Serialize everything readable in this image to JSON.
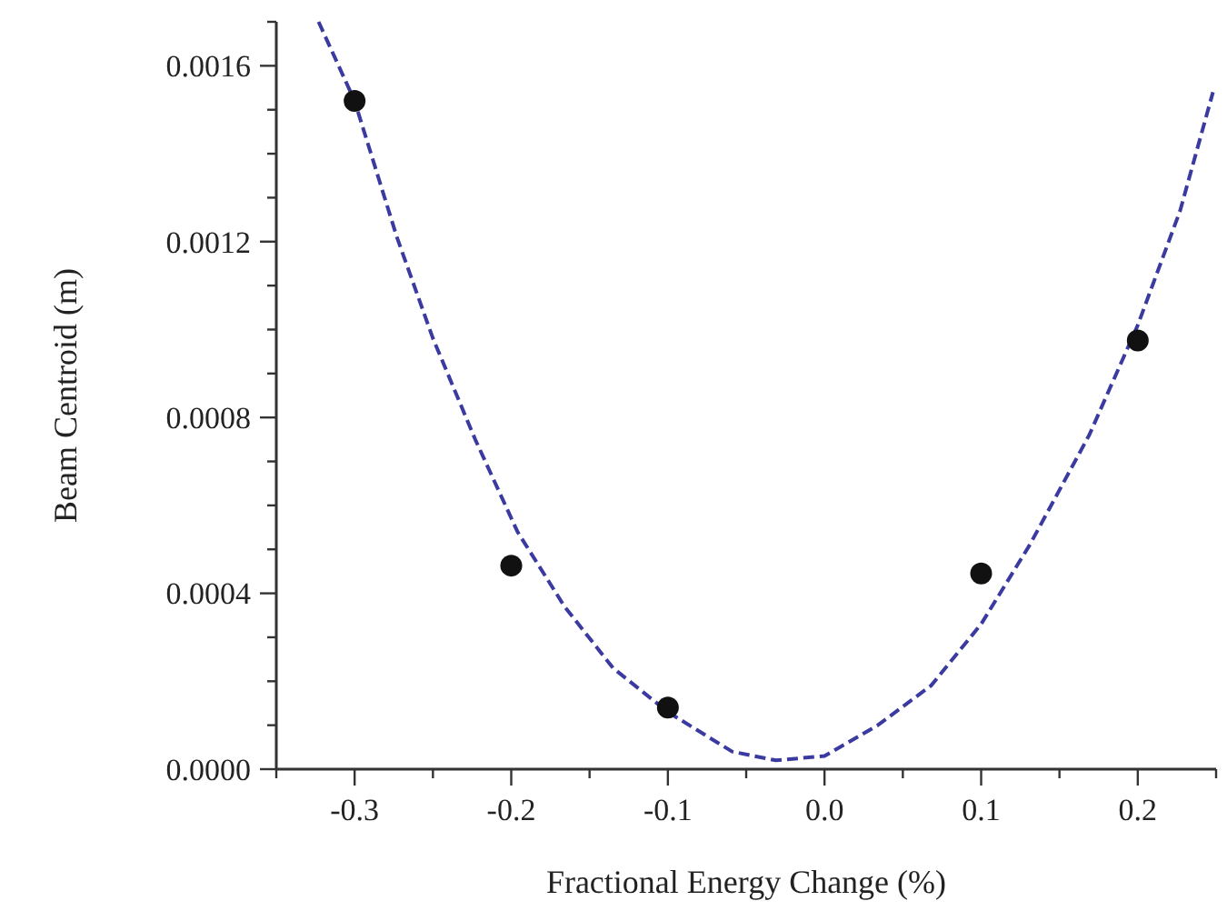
{
  "chart_data": {
    "type": "scatter",
    "xlabel": "Fractional Energy Change (%)",
    "ylabel": "Beam Centroid (m)",
    "xlim": [
      -0.35,
      0.25
    ],
    "ylim": [
      0,
      0.0017
    ],
    "xticks": [
      {
        "value": -0.35,
        "label": null
      },
      {
        "value": -0.3,
        "label": "-0.3"
      },
      {
        "value": -0.25,
        "label": null
      },
      {
        "value": -0.2,
        "label": "-0.2"
      },
      {
        "value": -0.15,
        "label": null
      },
      {
        "value": -0.1,
        "label": "-0.1"
      },
      {
        "value": -0.05,
        "label": null
      },
      {
        "value": 0,
        "label": "0.0"
      },
      {
        "value": 0.05,
        "label": null
      },
      {
        "value": 0.1,
        "label": "0.1"
      },
      {
        "value": 0.15,
        "label": null
      },
      {
        "value": 0.2,
        "label": "0.2"
      },
      {
        "value": 0.25,
        "label": null
      }
    ],
    "yticks": [
      {
        "value": 0,
        "label": "0.0000"
      },
      {
        "value": 0.0001,
        "label": null
      },
      {
        "value": 0.0002,
        "label": null
      },
      {
        "value": 0.0003,
        "label": null
      },
      {
        "value": 0.0004,
        "label": "0.0004"
      },
      {
        "value": 0.0005,
        "label": null
      },
      {
        "value": 0.0006,
        "label": null
      },
      {
        "value": 0.0007,
        "label": null
      },
      {
        "value": 0.0008,
        "label": "0.0008"
      },
      {
        "value": 0.0009,
        "label": null
      },
      {
        "value": 0.001,
        "label": null
      },
      {
        "value": 0.0011,
        "label": null
      },
      {
        "value": 0.0012,
        "label": "0.0012"
      },
      {
        "value": 0.0013,
        "label": null
      },
      {
        "value": 0.0014,
        "label": null
      },
      {
        "value": 0.0015,
        "label": null
      },
      {
        "value": 0.0016,
        "label": "0.0016"
      },
      {
        "value": 0.0017,
        "label": null
      }
    ],
    "grid": false,
    "series": [
      {
        "color": "#111111",
        "marker": "circle",
        "x": [
          -0.3,
          -0.2,
          -0.1,
          0.1,
          0.2
        ],
        "values": [
          0.00152,
          0.000463,
          0.00014,
          0.000445,
          0.000975
        ]
      },
      {
        "type": "line",
        "color": "#3a3aa0",
        "line_style": "dashed",
        "marker": "none",
        "x": [
          -0.323,
          -0.3,
          -0.273,
          -0.25,
          -0.223,
          -0.196,
          -0.166,
          -0.135,
          -0.1,
          -0.059,
          -0.031,
          0.0,
          0.034,
          0.068,
          0.1,
          0.131,
          0.169,
          0.2,
          0.227,
          0.248
        ],
        "values": [
          0.0017,
          0.00152,
          0.00121,
          0.00098,
          0.00075,
          0.00054,
          0.00037,
          0.00023,
          0.00013,
          4e-05,
          2e-05,
          3e-05,
          0.0001,
          0.00019,
          0.00033,
          0.00051,
          0.00076,
          0.00101,
          0.00127,
          0.00154
        ]
      }
    ]
  }
}
